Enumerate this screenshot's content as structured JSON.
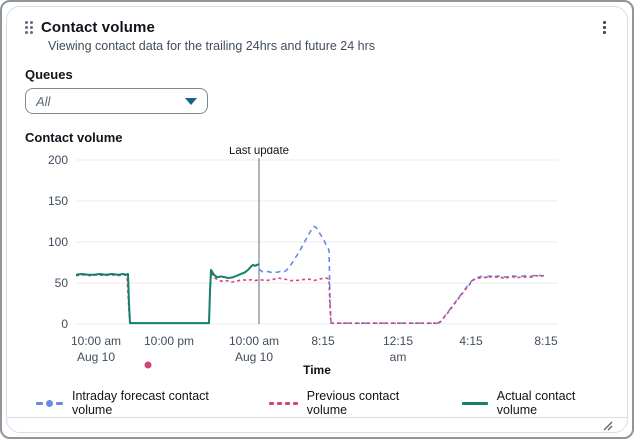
{
  "colors": {
    "forecast": "#688ae8",
    "previous": "#d6437c",
    "actual": "#12806c",
    "annotation_line": "#5f6b7a",
    "grid": "#e9ebed",
    "axis_text": "#414d5c",
    "text_dark": "#0f141a",
    "caret": "#14628c"
  },
  "widget": {
    "title": "Contact volume",
    "subtitle": "Viewing contact data for the trailing 24hrs and future 24 hrs",
    "queues_label": "Queues",
    "queues_value": "All",
    "chart_label": "Contact volume"
  },
  "chart_data": {
    "type": "line",
    "title": "Contact volume",
    "xlabel": "Time",
    "ylabel": "",
    "ylim": [
      0,
      200
    ],
    "yticks": [
      0,
      50,
      100,
      150,
      200
    ],
    "grid": "horizontal",
    "legend_position": "bottom",
    "xticks": [
      {
        "t": 20,
        "line1": "10:00 am",
        "line2": "Aug 10"
      },
      {
        "t": 93,
        "line1": "10:00 pm",
        "line2": ""
      },
      {
        "t": 178,
        "line1": "10:00 am",
        "line2": "Aug 10"
      },
      {
        "t": 247,
        "line1": "8:15",
        "line2": ""
      },
      {
        "t": 322,
        "line1": "12:15",
        "line2": "am"
      },
      {
        "t": 395,
        "line1": "4:15",
        "line2": ""
      },
      {
        "t": 470,
        "line1": "8:15",
        "line2": ""
      }
    ],
    "annotation": {
      "label": "Last update",
      "t": 183
    },
    "stray_point": {
      "x": 147,
      "y": 348
    },
    "series": [
      {
        "name": "Intraday forecast contact volume",
        "style": "dashed",
        "color_key": "forecast",
        "points": [
          [
            183,
            67
          ],
          [
            186,
            64
          ],
          [
            189,
            63
          ],
          [
            192,
            64
          ],
          [
            195,
            63
          ],
          [
            198,
            64
          ],
          [
            201,
            63
          ],
          [
            204,
            64
          ],
          [
            207,
            63
          ],
          [
            210,
            65
          ],
          [
            213,
            69
          ],
          [
            217,
            76
          ],
          [
            221,
            84
          ],
          [
            225,
            92
          ],
          [
            229,
            101
          ],
          [
            233,
            110
          ],
          [
            236,
            116
          ],
          [
            238,
            119
          ],
          [
            240,
            118
          ],
          [
            242,
            114
          ],
          [
            245,
            108
          ],
          [
            248,
            102
          ],
          [
            250,
            97
          ],
          [
            252,
            93
          ],
          [
            253,
            90
          ],
          [
            254,
            30
          ],
          [
            255,
            1
          ],
          [
            270,
            1
          ],
          [
            290,
            1
          ],
          [
            310,
            1
          ],
          [
            330,
            1
          ],
          [
            350,
            1
          ],
          [
            362,
            1
          ],
          [
            366,
            5
          ],
          [
            374,
            18
          ],
          [
            382,
            31
          ],
          [
            390,
            44
          ],
          [
            396,
            53
          ],
          [
            400,
            56
          ],
          [
            405,
            58
          ],
          [
            410,
            57
          ],
          [
            415,
            59
          ],
          [
            420,
            58
          ],
          [
            425,
            59
          ],
          [
            430,
            57
          ],
          [
            435,
            59
          ],
          [
            440,
            58
          ],
          [
            445,
            58
          ],
          [
            450,
            59
          ],
          [
            455,
            58
          ],
          [
            460,
            60
          ],
          [
            465,
            59
          ],
          [
            470,
            59
          ]
        ]
      },
      {
        "name": "Previous contact volume",
        "style": "dashed-short",
        "color_key": "previous",
        "points": [
          [
            0,
            59
          ],
          [
            7,
            60
          ],
          [
            14,
            59
          ],
          [
            21,
            60
          ],
          [
            28,
            59
          ],
          [
            35,
            60
          ],
          [
            42,
            59
          ],
          [
            48,
            60
          ],
          [
            51,
            59
          ],
          [
            53,
            15
          ],
          [
            54,
            1
          ],
          [
            70,
            1
          ],
          [
            90,
            1
          ],
          [
            110,
            1
          ],
          [
            130,
            1
          ],
          [
            133,
            1
          ],
          [
            134,
            35
          ],
          [
            135,
            62
          ],
          [
            139,
            56
          ],
          [
            143,
            53
          ],
          [
            147,
            52
          ],
          [
            151,
            53
          ],
          [
            155,
            51
          ],
          [
            159,
            52
          ],
          [
            163,
            53
          ],
          [
            167,
            54
          ],
          [
            171,
            53
          ],
          [
            175,
            54
          ],
          [
            179,
            53
          ],
          [
            184,
            54
          ],
          [
            190,
            53
          ],
          [
            196,
            54
          ],
          [
            202,
            56
          ],
          [
            208,
            55
          ],
          [
            214,
            53
          ],
          [
            220,
            53
          ],
          [
            226,
            54
          ],
          [
            232,
            55
          ],
          [
            238,
            53
          ],
          [
            244,
            55
          ],
          [
            250,
            56
          ],
          [
            253,
            55
          ],
          [
            254,
            20
          ],
          [
            255,
            1
          ],
          [
            270,
            1
          ],
          [
            290,
            1
          ],
          [
            310,
            1
          ],
          [
            330,
            1
          ],
          [
            350,
            1
          ],
          [
            362,
            1
          ],
          [
            364,
            2
          ],
          [
            372,
            14
          ],
          [
            380,
            27
          ],
          [
            388,
            40
          ],
          [
            396,
            52
          ],
          [
            400,
            56
          ],
          [
            404,
            56
          ],
          [
            408,
            57
          ],
          [
            412,
            56
          ],
          [
            416,
            58
          ],
          [
            420,
            57
          ],
          [
            424,
            58
          ],
          [
            428,
            55
          ],
          [
            432,
            57
          ],
          [
            436,
            58
          ],
          [
            440,
            56
          ],
          [
            444,
            57
          ],
          [
            448,
            57
          ],
          [
            452,
            58
          ],
          [
            456,
            57
          ],
          [
            460,
            59
          ],
          [
            464,
            58
          ],
          [
            468,
            59
          ],
          [
            470,
            58
          ]
        ]
      },
      {
        "name": "Actual contact volume",
        "style": "solid",
        "color_key": "actual",
        "points": [
          [
            0,
            60
          ],
          [
            6,
            61
          ],
          [
            12,
            60
          ],
          [
            18,
            60
          ],
          [
            24,
            61
          ],
          [
            30,
            60
          ],
          [
            36,
            61
          ],
          [
            42,
            60
          ],
          [
            47,
            61
          ],
          [
            50,
            60
          ],
          [
            52,
            61
          ],
          [
            53,
            25
          ],
          [
            54,
            1
          ],
          [
            65,
            1
          ],
          [
            80,
            1
          ],
          [
            95,
            1
          ],
          [
            110,
            1
          ],
          [
            125,
            1
          ],
          [
            133,
            1
          ],
          [
            134,
            40
          ],
          [
            135,
            66
          ],
          [
            138,
            60
          ],
          [
            141,
            57
          ],
          [
            145,
            58
          ],
          [
            149,
            57
          ],
          [
            153,
            56
          ],
          [
            157,
            57
          ],
          [
            161,
            59
          ],
          [
            165,
            61
          ],
          [
            169,
            63
          ],
          [
            172,
            66
          ],
          [
            175,
            70
          ],
          [
            177,
            72
          ],
          [
            179,
            71
          ],
          [
            181,
            72
          ],
          [
            183,
            73
          ]
        ]
      }
    ]
  }
}
